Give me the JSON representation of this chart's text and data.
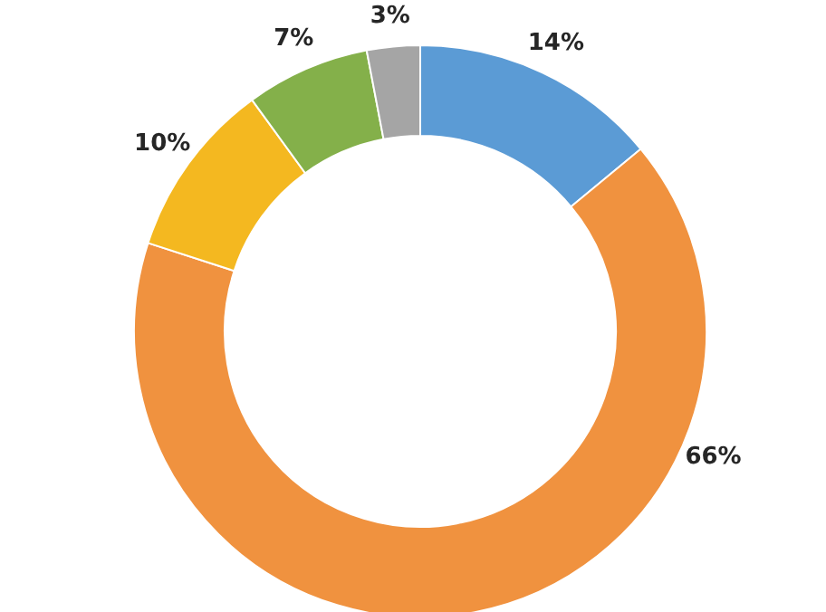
{
  "chart_data": {
    "type": "donut",
    "categories": [
      null,
      null,
      null,
      null,
      null
    ],
    "values": [
      14,
      66,
      10,
      7,
      3
    ],
    "colors": [
      "#5b9bd5",
      "#f0923f",
      "#f4b820",
      "#84b04a",
      "#a5a5a5"
    ],
    "value_labels": [
      "14%",
      "66%",
      "10%",
      "7%",
      "3%"
    ],
    "legend": false
  }
}
